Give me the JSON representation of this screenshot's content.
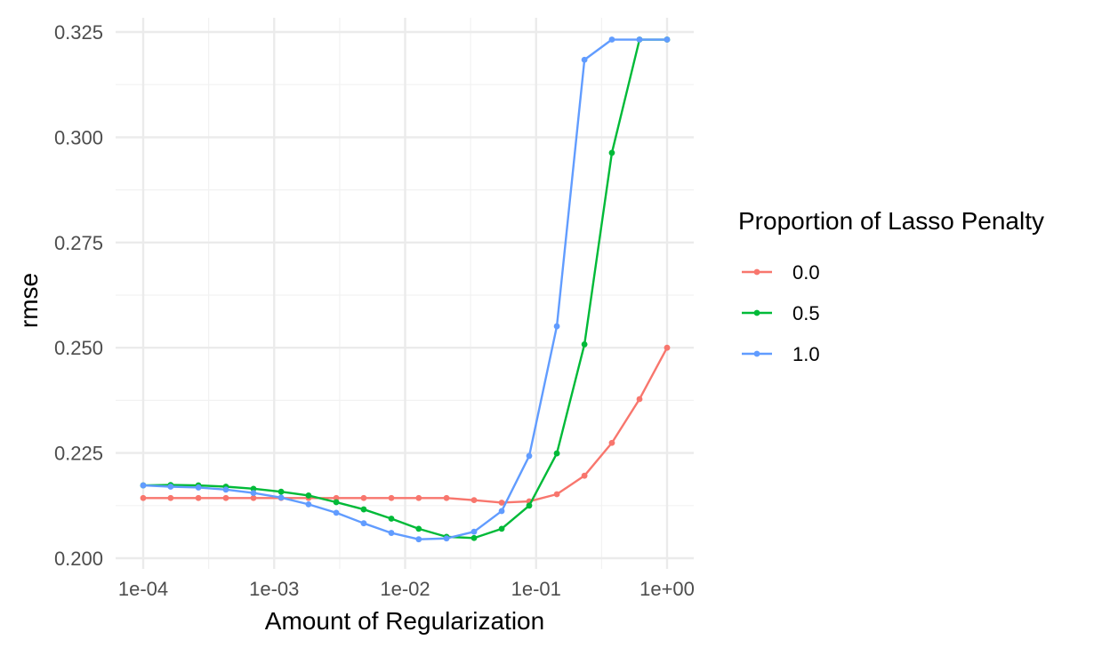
{
  "chart_data": {
    "type": "line",
    "xscale": "log10",
    "xlim": [
      0.0001,
      1
    ],
    "ylim": [
      0.2,
      0.325
    ],
    "xlabel": "Amount of Regularization",
    "ylabel": "rmse",
    "x_ticks": [
      0.0001,
      0.001,
      0.01,
      0.1,
      1
    ],
    "x_tick_labels": [
      "1e-04",
      "1e-03",
      "1e-02",
      "1e-01",
      "1e+00"
    ],
    "y_ticks": [
      0.2,
      0.225,
      0.25,
      0.275,
      0.3,
      0.325
    ],
    "y_tick_labels": [
      "0.200",
      "0.225",
      "0.250",
      "0.275",
      "0.300",
      "0.325"
    ],
    "grid": true,
    "legend": {
      "title": "Proportion of Lasso Penalty",
      "position": "right"
    },
    "x": [
      0.0001,
      0.000162,
      0.000264,
      0.000428,
      0.000695,
      0.00113,
      0.00183,
      0.00298,
      0.00483,
      0.00785,
      0.0127,
      0.0207,
      0.0336,
      0.0546,
      0.0886,
      0.144,
      0.234,
      0.379,
      0.616,
      1
    ],
    "series": [
      {
        "name": "0.0",
        "color": "#F8766D",
        "values": [
          0.2143,
          0.2143,
          0.2143,
          0.2143,
          0.2143,
          0.2143,
          0.2143,
          0.2143,
          0.2143,
          0.2143,
          0.2143,
          0.2143,
          0.2138,
          0.2132,
          0.2135,
          0.2152,
          0.2196,
          0.2274,
          0.2378,
          0.25
        ]
      },
      {
        "name": "0.5",
        "color": "#00BA38",
        "values": [
          0.2173,
          0.2174,
          0.2173,
          0.217,
          0.2165,
          0.2158,
          0.2149,
          0.2133,
          0.2116,
          0.2094,
          0.207,
          0.2051,
          0.2048,
          0.207,
          0.2125,
          0.2249,
          0.2508,
          0.2963,
          0.3232,
          0.3232
        ]
      },
      {
        "name": "1.0",
        "color": "#619CFF",
        "values": [
          0.2173,
          0.217,
          0.2168,
          0.2163,
          0.2155,
          0.2144,
          0.2128,
          0.2108,
          0.2083,
          0.206,
          0.2045,
          0.2047,
          0.2063,
          0.2112,
          0.2243,
          0.2551,
          0.3184,
          0.3232,
          0.3232,
          0.3232
        ]
      }
    ]
  }
}
